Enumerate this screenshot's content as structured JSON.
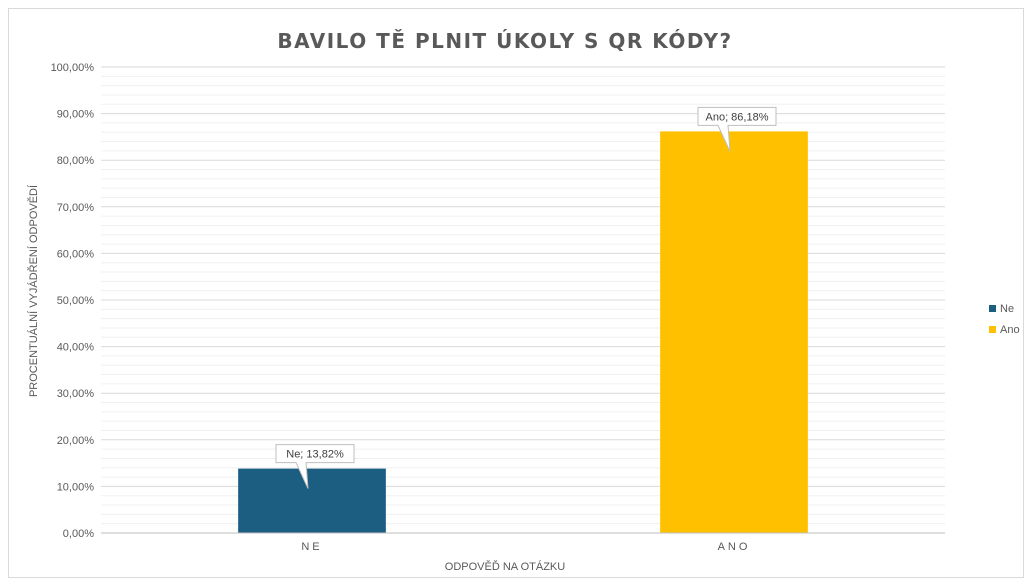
{
  "chart_data": {
    "type": "bar",
    "title": "BAVILO TĚ PLNIT ÚKOLY S QR KÓDY?",
    "xlabel": "ODPOVĚĎ NA OTÁZKU",
    "ylabel": "PROCENTUÁLNÍ VYJÁDŘENÍ ODPOVĚDÍ",
    "categories": [
      "NE",
      "ANO"
    ],
    "series": [
      {
        "name": "Ne",
        "category": "NE",
        "value": 13.82,
        "color": "#1b5e82",
        "data_label": "Ne; 13,82%"
      },
      {
        "name": "Ano",
        "category": "ANO",
        "value": 86.18,
        "color": "#ffc000",
        "data_label": "Ano; 86,18%"
      }
    ],
    "ylim": [
      0,
      100
    ],
    "yticks": [
      0,
      10,
      20,
      30,
      40,
      50,
      60,
      70,
      80,
      90,
      100
    ],
    "ytick_labels": [
      "0,00%",
      "10,00%",
      "20,00%",
      "30,00%",
      "40,00%",
      "50,00%",
      "60,00%",
      "70,00%",
      "80,00%",
      "90,00%",
      "100,00%"
    ],
    "minor_grid": true,
    "legend_position": "right"
  }
}
